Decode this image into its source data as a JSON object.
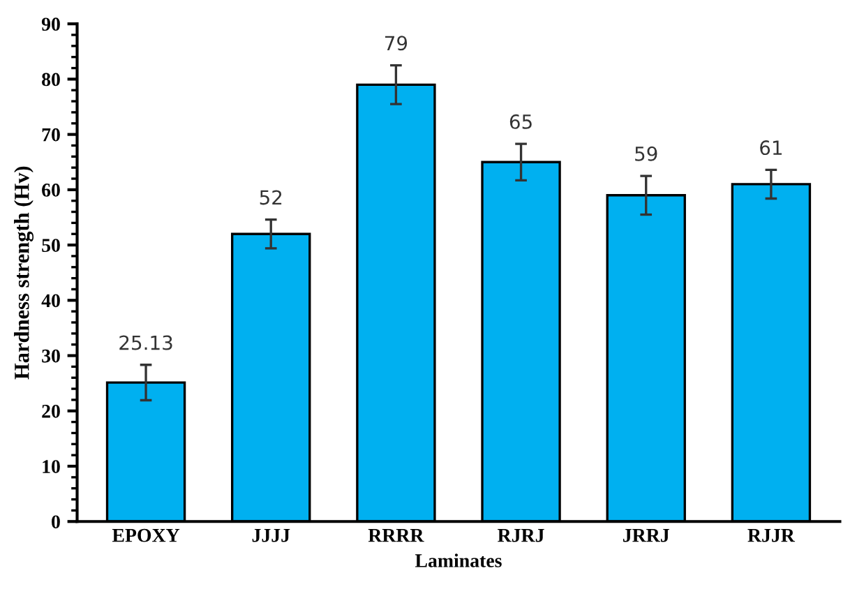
{
  "chart_data": {
    "type": "bar",
    "xlabel": "Laminates",
    "ylabel": "Hardness strength (Hv)",
    "categories": [
      "EPOXY",
      "JJJJ",
      "RRRR",
      "RJRJ",
      "JRRJ",
      "RJJR"
    ],
    "values": [
      25.13,
      52,
      79,
      65,
      59,
      61
    ],
    "errors": [
      3.2,
      2.6,
      3.5,
      3.3,
      3.5,
      2.6
    ],
    "color": "#00b0f0",
    "data_labels": true,
    "grid": false,
    "ylim": [
      0,
      90
    ],
    "yticks": [
      0,
      10,
      20,
      30,
      40,
      50,
      60,
      70,
      80,
      90
    ]
  }
}
